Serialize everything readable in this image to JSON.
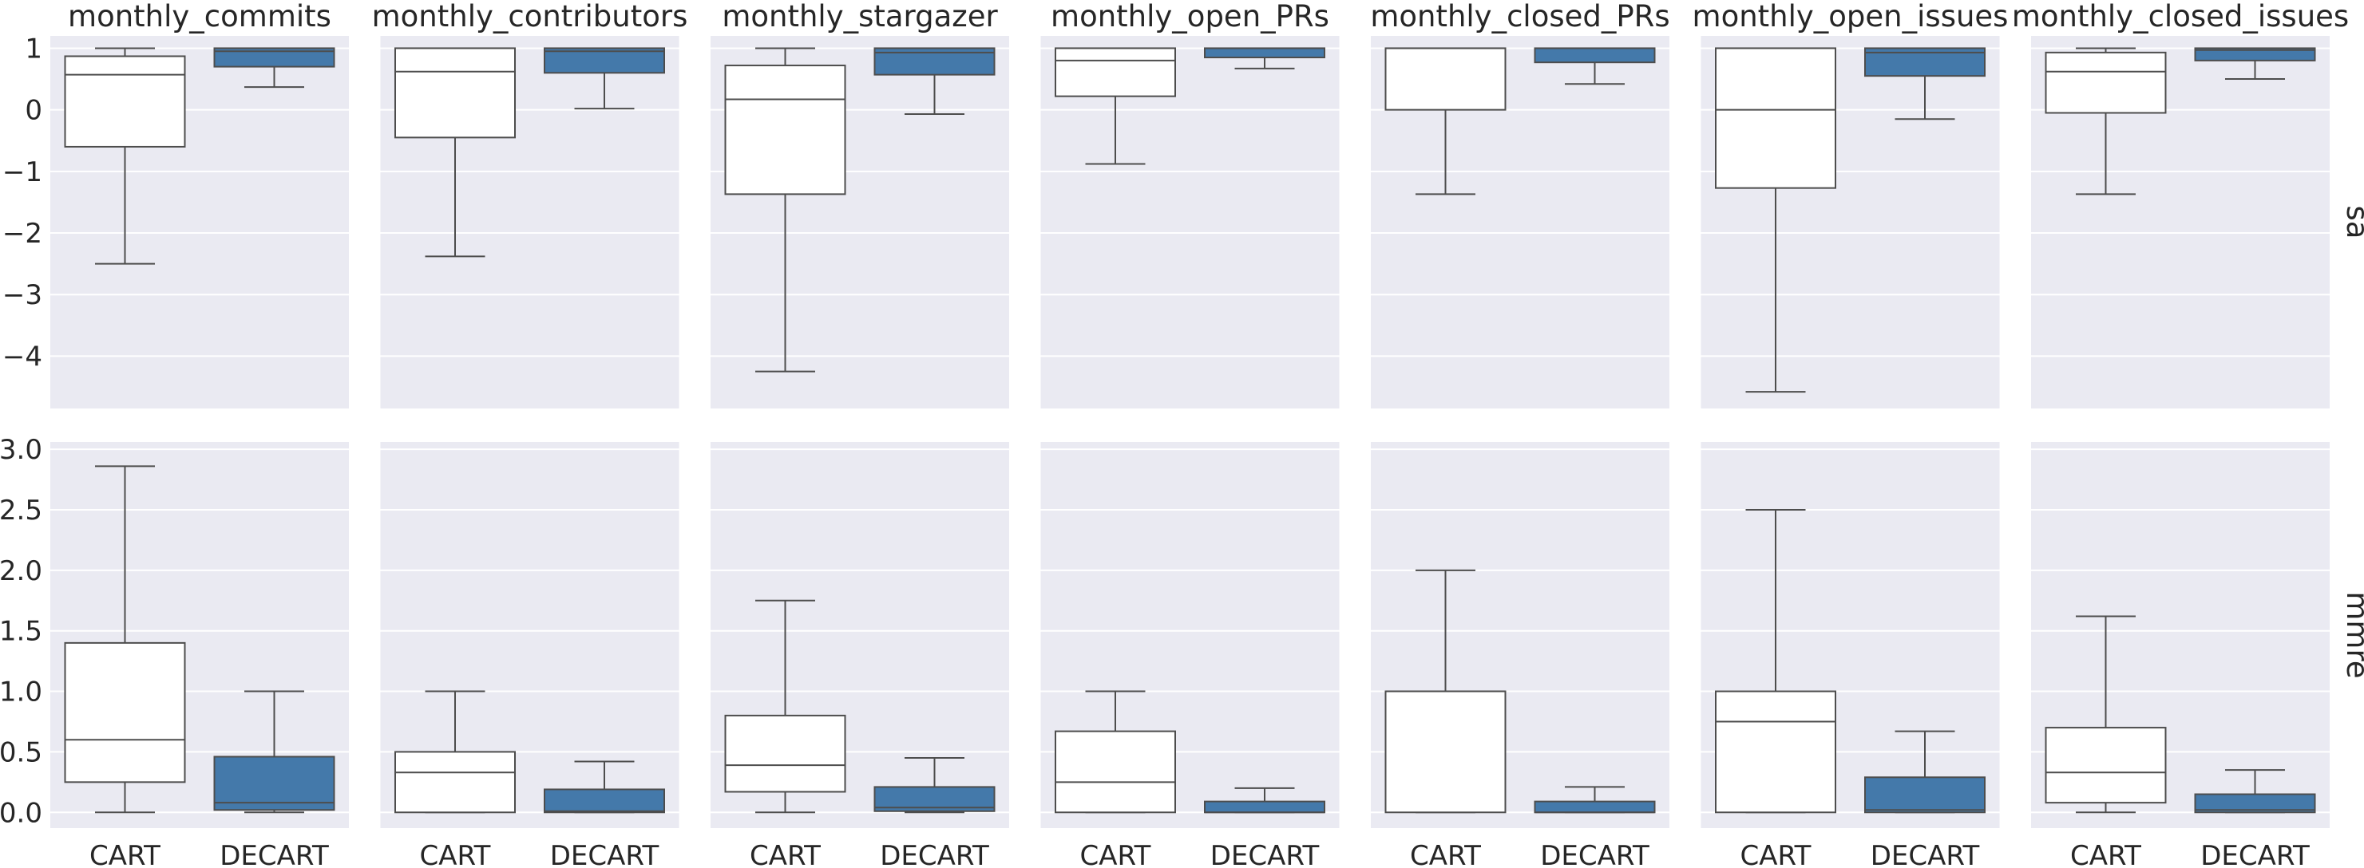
{
  "chart_data": {
    "type": "box",
    "categories": [
      "CART",
      "DECART"
    ],
    "columns": [
      "monthly_commits",
      "monthly_contributors",
      "monthly_stargazer",
      "monthly_open_PRs",
      "monthly_closed_PRs",
      "monthly_open_issues",
      "monthly_closed_issues"
    ],
    "rows": [
      {
        "name": "sa",
        "ylim": [
          -4.85,
          1.2
        ],
        "yticks": [
          -4,
          -3,
          -2,
          -1,
          0,
          1
        ],
        "ytick_labels": [
          "−4",
          "−3",
          "−2",
          "−1",
          "0",
          "1"
        ],
        "panels": [
          {
            "CART": {
              "whislo": -2.5,
              "q1": -0.6,
              "med": 0.57,
              "q3": 0.87,
              "whishi": 1.0
            },
            "DECART": {
              "whislo": 0.37,
              "q1": 0.7,
              "med": 0.95,
              "q3": 1.0,
              "whishi": 1.0
            }
          },
          {
            "CART": {
              "whislo": -2.38,
              "q1": -0.45,
              "med": 0.62,
              "q3": 1.0,
              "whishi": 1.0
            },
            "DECART": {
              "whislo": 0.02,
              "q1": 0.6,
              "med": 0.95,
              "q3": 1.0,
              "whishi": 1.0
            }
          },
          {
            "CART": {
              "whislo": -4.25,
              "q1": -1.37,
              "med": 0.17,
              "q3": 0.72,
              "whishi": 1.0
            },
            "DECART": {
              "whislo": -0.07,
              "q1": 0.57,
              "med": 0.93,
              "q3": 1.0,
              "whishi": 1.0
            }
          },
          {
            "CART": {
              "whislo": -0.88,
              "q1": 0.22,
              "med": 0.8,
              "q3": 1.0,
              "whishi": 1.0
            },
            "DECART": {
              "whislo": 0.67,
              "q1": 0.85,
              "med": 1.0,
              "q3": 1.0,
              "whishi": 1.0
            }
          },
          {
            "CART": {
              "whislo": -1.37,
              "q1": 0.0,
              "med": 1.0,
              "q3": 1.0,
              "whishi": 1.0
            },
            "DECART": {
              "whislo": 0.42,
              "q1": 0.77,
              "med": 1.0,
              "q3": 1.0,
              "whishi": 1.0
            }
          },
          {
            "CART": {
              "whislo": -4.58,
              "q1": -1.27,
              "med": 0.0,
              "q3": 1.0,
              "whishi": 1.0
            },
            "DECART": {
              "whislo": -0.15,
              "q1": 0.55,
              "med": 0.93,
              "q3": 1.0,
              "whishi": 1.0
            }
          },
          {
            "CART": {
              "whislo": -1.37,
              "q1": -0.05,
              "med": 0.62,
              "q3": 0.93,
              "whishi": 1.0
            },
            "DECART": {
              "whislo": 0.5,
              "q1": 0.8,
              "med": 0.97,
              "q3": 1.0,
              "whishi": 1.0
            }
          }
        ]
      },
      {
        "name": "mmre",
        "ylim": [
          -0.13,
          3.06
        ],
        "yticks": [
          0.0,
          0.5,
          1.0,
          1.5,
          2.0,
          2.5,
          3.0
        ],
        "ytick_labels": [
          "0.0",
          "0.5",
          "1.0",
          "1.5",
          "2.0",
          "2.5",
          "3.0"
        ],
        "panels": [
          {
            "CART": {
              "whislo": 0.0,
              "q1": 0.25,
              "med": 0.6,
              "q3": 1.4,
              "whishi": 2.86
            },
            "DECART": {
              "whislo": 0.0,
              "q1": 0.02,
              "med": 0.08,
              "q3": 0.46,
              "whishi": 1.0
            }
          },
          {
            "CART": {
              "whislo": 0.0,
              "q1": 0.0,
              "med": 0.33,
              "q3": 0.5,
              "whishi": 1.0
            },
            "DECART": {
              "whislo": 0.0,
              "q1": 0.0,
              "med": 0.01,
              "q3": 0.19,
              "whishi": 0.42
            }
          },
          {
            "CART": {
              "whislo": 0.0,
              "q1": 0.17,
              "med": 0.39,
              "q3": 0.8,
              "whishi": 1.75
            },
            "DECART": {
              "whislo": 0.0,
              "q1": 0.01,
              "med": 0.04,
              "q3": 0.21,
              "whishi": 0.45
            }
          },
          {
            "CART": {
              "whislo": 0.0,
              "q1": 0.0,
              "med": 0.25,
              "q3": 0.67,
              "whishi": 1.0
            },
            "DECART": {
              "whislo": 0.0,
              "q1": 0.0,
              "med": 0.0,
              "q3": 0.09,
              "whishi": 0.2
            }
          },
          {
            "CART": {
              "whislo": 0.0,
              "q1": 0.0,
              "med": 1.0,
              "q3": 1.0,
              "whishi": 2.0
            },
            "DECART": {
              "whislo": 0.0,
              "q1": 0.0,
              "med": 0.0,
              "q3": 0.09,
              "whishi": 0.21
            }
          },
          {
            "CART": {
              "whislo": 0.0,
              "q1": 0.0,
              "med": 0.75,
              "q3": 1.0,
              "whishi": 2.5
            },
            "DECART": {
              "whislo": 0.0,
              "q1": 0.0,
              "med": 0.02,
              "q3": 0.29,
              "whishi": 0.67
            }
          },
          {
            "CART": {
              "whislo": 0.0,
              "q1": 0.08,
              "med": 0.33,
              "q3": 0.7,
              "whishi": 1.62
            },
            "DECART": {
              "whislo": 0.0,
              "q1": 0.0,
              "med": 0.02,
              "q3": 0.15,
              "whishi": 0.35
            }
          }
        ]
      }
    ],
    "colors": {
      "CART": "#ffffff",
      "DECART": "#4479aa",
      "panel_bg": "#eaeaf2",
      "grid": "#ffffff",
      "line": "#4d4d4d"
    },
    "grid": true,
    "legend": "none"
  }
}
